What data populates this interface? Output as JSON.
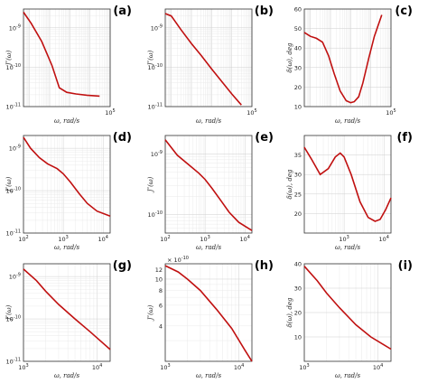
{
  "chart_data": [
    {
      "id": "a",
      "panel_label": "(a)",
      "type": "line",
      "xscale": "log",
      "yscale": "log",
      "xlabel": "ω, rad/s",
      "ylabel": "J″(ω)",
      "xlim": [
        5,
        100000
      ],
      "ylim": [
        1e-11,
        3e-09
      ],
      "xticks": [
        {
          "value": 100000,
          "label": "10",
          "sup": "5"
        }
      ],
      "yticks": [
        {
          "value": 1e-09,
          "label": "10",
          "sup": "-9"
        },
        {
          "value": 1e-10,
          "label": "10",
          "sup": "-10"
        },
        {
          "value": 1e-11,
          "label": "10",
          "sup": "-11"
        }
      ],
      "x": [
        5,
        12,
        40,
        130,
        300,
        700,
        2000,
        7000,
        30000
      ],
      "y": [
        2.5e-09,
        1.3e-09,
        4.5e-10,
        1.1e-10,
        3e-11,
        2.3e-11,
        2.1e-11,
        1.95e-11,
        1.85e-11
      ]
    },
    {
      "id": "b",
      "panel_label": "(b)",
      "type": "line",
      "xscale": "log",
      "yscale": "log",
      "xlabel": "ω, rad/s",
      "ylabel": "J″(ω)",
      "xlim": [
        5,
        100000
      ],
      "ylim": [
        1e-11,
        3e-09
      ],
      "xticks": [
        {
          "value": 100000,
          "label": "10",
          "sup": "5"
        }
      ],
      "yticks": [
        {
          "value": 1e-09,
          "label": "10",
          "sup": "-9"
        },
        {
          "value": 1e-10,
          "label": "10",
          "sup": "-10"
        },
        {
          "value": 1e-11,
          "label": "10",
          "sup": "-11"
        }
      ],
      "x": [
        5,
        10,
        30,
        100,
        300,
        1000,
        3000,
        10000,
        30000
      ],
      "y": [
        2.3e-09,
        2e-09,
        9e-10,
        4e-10,
        2e-10,
        9e-11,
        4.5e-11,
        2.1e-11,
        1.1e-11
      ]
    },
    {
      "id": "c",
      "panel_label": "(c)",
      "type": "line",
      "xscale": "log",
      "yscale": "linear",
      "xlabel": "ω, rad/s",
      "ylabel": "δ(ω), deg",
      "xlim": [
        5,
        100000
      ],
      "ylim": [
        10,
        60
      ],
      "xticks": [
        {
          "value": 100000,
          "label": "10",
          "sup": "5"
        }
      ],
      "yticks": [
        {
          "value": 10,
          "label": "10"
        },
        {
          "value": 20,
          "label": "20"
        },
        {
          "value": 30,
          "label": "30"
        },
        {
          "value": 40,
          "label": "40"
        },
        {
          "value": 50,
          "label": "50"
        },
        {
          "value": 60,
          "label": "60"
        }
      ],
      "x": [
        5,
        10,
        20,
        40,
        80,
        150,
        300,
        600,
        1000,
        1500,
        2500,
        4000,
        8000,
        15000,
        35000
      ],
      "y": [
        48,
        46,
        45,
        43,
        36,
        27,
        18,
        13,
        12,
        12.5,
        15,
        22,
        35,
        46,
        57
      ]
    },
    {
      "id": "d",
      "panel_label": "(d)",
      "type": "line",
      "xscale": "log",
      "yscale": "log",
      "xlabel": "ω, rad/s",
      "ylabel": "J″(ω)",
      "xlim": [
        100,
        15000
      ],
      "ylim": [
        1e-11,
        2e-09
      ],
      "xticks": [
        {
          "value": 100,
          "label": "10",
          "sup": "2"
        },
        {
          "value": 1000,
          "label": "10",
          "sup": "3"
        },
        {
          "value": 10000,
          "label": "10",
          "sup": "4"
        }
      ],
      "yticks": [
        {
          "value": 1e-09,
          "label": "10",
          "sup": "-9"
        },
        {
          "value": 1e-10,
          "label": "10",
          "sup": "-10"
        },
        {
          "value": 1e-11,
          "label": "10",
          "sup": "-11"
        }
      ],
      "x": [
        100,
        150,
        250,
        400,
        700,
        1000,
        1500,
        2500,
        4000,
        7000,
        15000
      ],
      "y": [
        1.8e-09,
        1e-09,
        6e-10,
        4.3e-10,
        3.3e-10,
        2.5e-10,
        1.6e-10,
        8.5e-11,
        5e-11,
        3.3e-11,
        2.5e-11
      ]
    },
    {
      "id": "e",
      "panel_label": "(e)",
      "type": "line",
      "xscale": "log",
      "yscale": "log",
      "xlabel": "ω, rad/s",
      "ylabel": "J″(ω)",
      "xlim": [
        100,
        15000
      ],
      "ylim": [
        5e-11,
        2e-09
      ],
      "xticks": [
        {
          "value": 100,
          "label": "10",
          "sup": "2"
        },
        {
          "value": 1000,
          "label": "10",
          "sup": "3"
        },
        {
          "value": 10000,
          "label": "10",
          "sup": "4"
        }
      ],
      "yticks": [
        {
          "value": 1e-09,
          "label": "10",
          "sup": "-9"
        },
        {
          "value": 1e-10,
          "label": "10",
          "sup": "-10"
        }
      ],
      "x": [
        100,
        200,
        400,
        700,
        1000,
        1500,
        2500,
        4000,
        7000,
        15000
      ],
      "y": [
        1.7e-09,
        9.5e-10,
        6.5e-10,
        4.8e-10,
        3.8e-10,
        2.7e-10,
        1.7e-10,
        1.1e-10,
        7.5e-11,
        5.5e-11
      ]
    },
    {
      "id": "f",
      "panel_label": "(f)",
      "type": "line",
      "xscale": "log",
      "yscale": "linear",
      "xlabel": "ω, rad/s",
      "ylabel": "δ(ω), deg",
      "xlim": [
        100,
        15000
      ],
      "ylim": [
        15,
        40
      ],
      "xticks": [
        {
          "value": 1000,
          "label": "10",
          "sup": "3"
        },
        {
          "value": 10000,
          "label": "10",
          "sup": "4"
        }
      ],
      "yticks": [
        {
          "value": 20,
          "label": "20"
        },
        {
          "value": 25,
          "label": "25"
        },
        {
          "value": 30,
          "label": "30"
        },
        {
          "value": 35,
          "label": "35"
        }
      ],
      "x": [
        100,
        150,
        250,
        400,
        600,
        800,
        1000,
        1500,
        2500,
        4000,
        6000,
        8000,
        11000,
        15000
      ],
      "y": [
        37,
        34,
        30,
        31.5,
        34.5,
        35.5,
        34.5,
        30,
        23,
        19,
        18,
        18.5,
        21,
        24
      ]
    },
    {
      "id": "g",
      "panel_label": "(g)",
      "type": "line",
      "xscale": "log",
      "yscale": "log",
      "xlabel": "ω, rad/s",
      "ylabel": "J″(ω)",
      "xlim": [
        1000,
        15000
      ],
      "ylim": [
        1e-11,
        2e-09
      ],
      "xticks": [
        {
          "value": 1000,
          "label": "10",
          "sup": "3"
        },
        {
          "value": 10000,
          "label": "10",
          "sup": "4"
        }
      ],
      "yticks": [
        {
          "value": 1e-09,
          "label": "10",
          "sup": "-9"
        },
        {
          "value": 1e-10,
          "label": "10",
          "sup": "-10"
        },
        {
          "value": 1e-11,
          "label": "10",
          "sup": "-11"
        }
      ],
      "x": [
        1000,
        1500,
        2000,
        3000,
        5000,
        8000,
        15000
      ],
      "y": [
        1.5e-09,
        8e-10,
        4.5e-10,
        2.2e-10,
        1e-10,
        5e-11,
        1.9e-11
      ]
    },
    {
      "id": "h",
      "panel_label": "(h)",
      "type": "line",
      "xscale": "log",
      "yscale": "log",
      "xlabel": "ω, rad/s",
      "ylabel": "J″(ω)",
      "xlim": [
        1000,
        15000
      ],
      "ylim": [
        2e-10,
        1.35e-09
      ],
      "multiplier": {
        "label": "10",
        "sup": "-10",
        "prefix": "× "
      },
      "xticks": [
        {
          "value": 1000,
          "label": "10",
          "sup": "3"
        },
        {
          "value": 10000,
          "label": "10",
          "sup": "4"
        }
      ],
      "yticks": [
        {
          "value": 4e-10,
          "label": "4"
        },
        {
          "value": 6e-10,
          "label": "6"
        },
        {
          "value": 8e-10,
          "label": "8"
        },
        {
          "value": 1e-09,
          "label": "10"
        },
        {
          "value": 1.2e-09,
          "label": "12"
        }
      ],
      "x": [
        1000,
        1500,
        2000,
        3000,
        5000,
        8000,
        12000,
        15000
      ],
      "y": [
        1.3e-09,
        1.15e-09,
        1e-09,
        8e-10,
        5.5e-10,
        3.8e-10,
        2.5e-10,
        2e-10
      ]
    },
    {
      "id": "i",
      "panel_label": "(i)",
      "type": "line",
      "xscale": "log",
      "yscale": "linear",
      "xlabel": "ω, rad/s",
      "ylabel": "δ(ω), deg",
      "xlim": [
        1000,
        15000
      ],
      "ylim": [
        0,
        40
      ],
      "xticks": [
        {
          "value": 1000,
          "label": "10",
          "sup": "3"
        },
        {
          "value": 10000,
          "label": "10",
          "sup": "4"
        }
      ],
      "yticks": [
        {
          "value": 10,
          "label": "10"
        },
        {
          "value": 20,
          "label": "20"
        },
        {
          "value": 30,
          "label": "30"
        },
        {
          "value": 40,
          "label": "40"
        }
      ],
      "x": [
        1000,
        1500,
        2000,
        3000,
        5000,
        8000,
        15000
      ],
      "y": [
        39,
        33,
        28,
        22,
        15,
        10,
        5
      ]
    }
  ]
}
